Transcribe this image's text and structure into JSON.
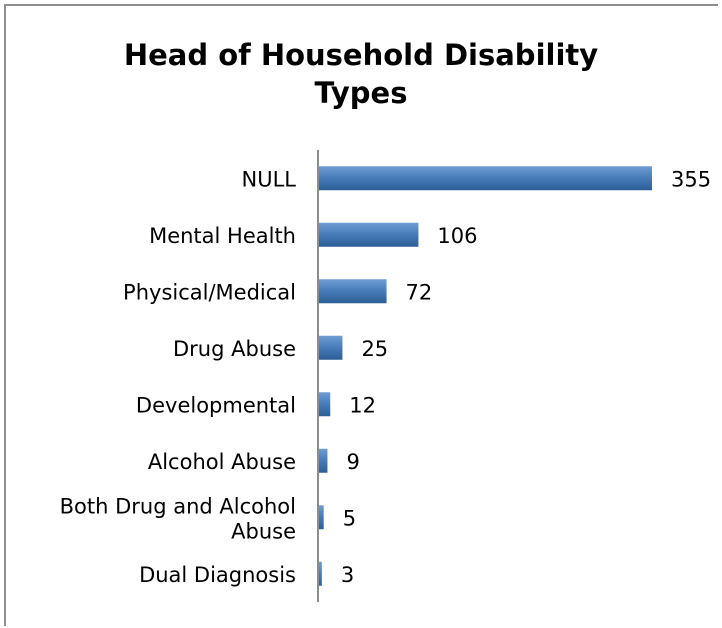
{
  "chart_data": {
    "type": "bar",
    "orientation": "horizontal",
    "title": "Head of Household Disability\nTypes",
    "xlabel": "",
    "ylabel": "",
    "categories": [
      "NULL",
      "Mental Health",
      "Physical/Medical",
      "Drug Abuse",
      "Developmental",
      "Alcohol Abuse",
      "Both Drug and Alcohol Abuse",
      "Dual Diagnosis"
    ],
    "values": [
      355,
      106,
      72,
      25,
      12,
      9,
      5,
      3
    ],
    "data_labels": [
      "355",
      "106",
      "72",
      "25",
      "12",
      "9",
      "5",
      "3"
    ],
    "xlim": [
      0,
      355
    ],
    "grid": false,
    "legend": "none",
    "bar_color": "#4a7ebb"
  }
}
